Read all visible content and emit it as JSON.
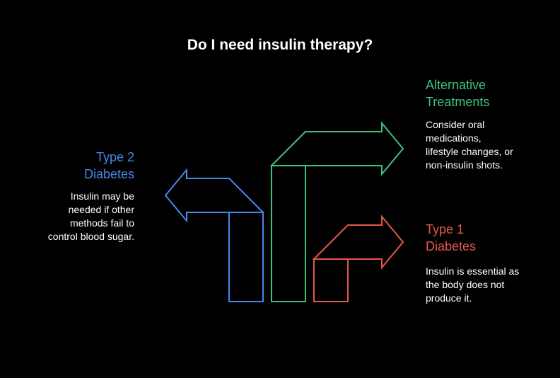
{
  "title": "Do I need insulin therapy?",
  "colors": {
    "type2": "#4a86e8",
    "alternative": "#3cc47c",
    "type1": "#e5574b"
  },
  "options": [
    {
      "id": "type2",
      "heading_line1": "Type 2",
      "heading_line2": "Diabetes",
      "desc_lines": [
        "Insulin may be",
        "needed if other",
        "methods fail to",
        "control blood sugar."
      ]
    },
    {
      "id": "alternative",
      "heading_line1": "Alternative",
      "heading_line2": "Treatments",
      "desc_lines": [
        "Consider oral",
        "medications,",
        "lifestyle changes, or",
        "non-insulin shots."
      ]
    },
    {
      "id": "type1",
      "heading_line1": "Type 1",
      "heading_line2": "Diabetes",
      "desc_lines": [
        "Insulin is essential as",
        "the body does not",
        "produce it."
      ]
    }
  ]
}
